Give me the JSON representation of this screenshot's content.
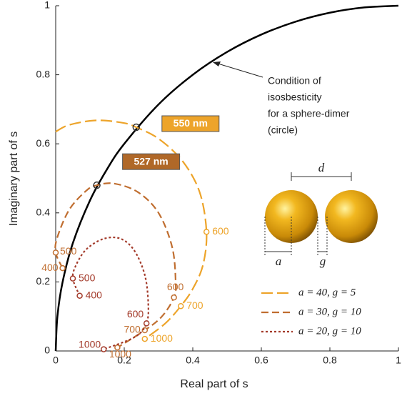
{
  "chart_data": {
    "type": "line",
    "xlabel": "Real part of s",
    "ylabel": "Imaginary part of s",
    "xlim": [
      0,
      1
    ],
    "ylim": [
      0,
      1
    ],
    "xticks": [
      0,
      0.2,
      0.4,
      0.6,
      0.8,
      1
    ],
    "yticks": [
      0,
      0.2,
      0.4,
      0.6,
      0.8,
      1
    ],
    "grid": false,
    "legend": "lower right",
    "series": [
      {
        "color": "#000000",
        "style": "solid",
        "x": [
          0,
          0.005,
          0.02,
          0.05,
          0.1,
          0.15,
          0.2,
          0.3,
          0.4,
          0.5,
          0.6,
          0.7,
          0.8,
          0.9,
          1.0
        ],
        "values": [
          0,
          0.0999,
          0.199,
          0.3122,
          0.4359,
          0.5268,
          0.6,
          0.7141,
          0.8,
          0.866,
          0.9165,
          0.9539,
          0.9798,
          0.995,
          1
        ]
      },
      {
        "name": "a = 40, g = 5",
        "color": "#eda42a",
        "style": "long-dash",
        "x": [
          0.0,
          0.04,
          0.12,
          0.2,
          0.235,
          0.3,
          0.37,
          0.42,
          0.44,
          0.43,
          0.4,
          0.365,
          0.32,
          0.26
        ],
        "values": [
          0.635,
          0.655,
          0.668,
          0.66,
          0.648,
          0.615,
          0.55,
          0.46,
          0.345,
          0.25,
          0.18,
          0.13,
          0.08,
          0.035
        ],
        "markers": [
          {
            "x": 0.44,
            "y": 0.345,
            "label": 600
          },
          {
            "x": 0.365,
            "y": 0.13,
            "label": 700
          },
          {
            "x": 0.26,
            "y": 0.035,
            "label": 1000
          }
        ]
      },
      {
        "name": "a = 30, g = 10",
        "color": "#c06e30",
        "style": "dash",
        "x": [
          0.02,
          0.0,
          0.005,
          0.04,
          0.09,
          0.12,
          0.17,
          0.24,
          0.3,
          0.34,
          0.35,
          0.345,
          0.31,
          0.26,
          0.18
        ],
        "values": [
          0.24,
          0.285,
          0.33,
          0.41,
          0.465,
          0.48,
          0.485,
          0.46,
          0.4,
          0.3,
          0.2,
          0.155,
          0.1,
          0.06,
          0.01
        ],
        "markers": [
          {
            "x": 0.02,
            "y": 0.24,
            "label": 400
          },
          {
            "x": 0.0,
            "y": 0.285,
            "label": 500
          },
          {
            "x": 0.345,
            "y": 0.155,
            "label": 600
          },
          {
            "x": 0.26,
            "y": 0.06,
            "label": 700
          },
          {
            "x": 0.18,
            "y": 0.01,
            "label": 1000
          }
        ]
      },
      {
        "name": "a = 20, g = 10",
        "color": "#a33a2a",
        "style": "dot",
        "x": [
          0.07,
          0.05,
          0.06,
          0.09,
          0.14,
          0.19,
          0.23,
          0.26,
          0.27,
          0.265,
          0.23,
          0.14
        ],
        "values": [
          0.16,
          0.21,
          0.25,
          0.295,
          0.325,
          0.325,
          0.29,
          0.22,
          0.14,
          0.08,
          0.04,
          0.005
        ],
        "markers": [
          {
            "x": 0.07,
            "y": 0.16,
            "label": 400
          },
          {
            "x": 0.05,
            "y": 0.21,
            "label": 500
          },
          {
            "x": 0.265,
            "y": 0.08,
            "label": 600
          },
          {
            "x": 0.14,
            "y": 0.005,
            "label": 1000
          }
        ]
      }
    ],
    "callouts": [
      {
        "text": "550 nm",
        "x": 0.235,
        "y": 0.648,
        "color": "#eda42a"
      },
      {
        "text": "527 nm",
        "x": 0.12,
        "y": 0.48,
        "color": "#b06828"
      }
    ],
    "circle_note": [
      "Condition of",
      "isosbesticity",
      "for a sphere-dimer",
      "(circle)"
    ],
    "inset_labels": [
      "d",
      "a",
      "g"
    ]
  }
}
